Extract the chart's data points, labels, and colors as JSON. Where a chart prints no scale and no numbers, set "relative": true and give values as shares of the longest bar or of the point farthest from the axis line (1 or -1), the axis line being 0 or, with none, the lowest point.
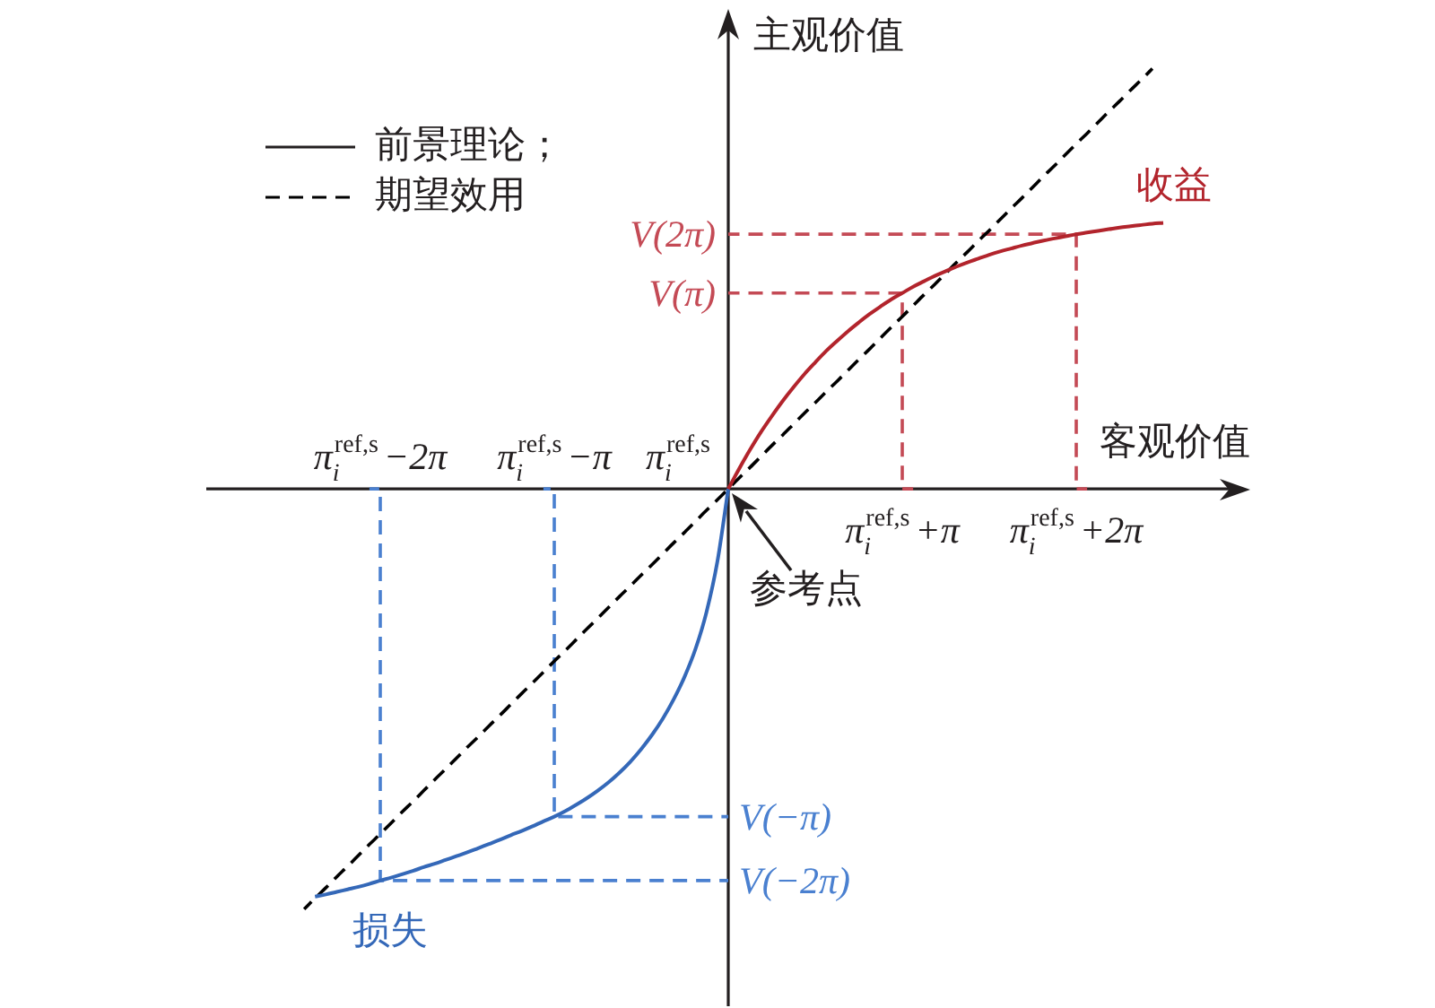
{
  "chart_data": {
    "type": "line",
    "relative": true,
    "xlabel": "客观价值",
    "ylabel": "主观价值",
    "categories": [
      null,
      null,
      null,
      null,
      null,
      null,
      null,
      null,
      null,
      null,
      null,
      null,
      null,
      null,
      null,
      null,
      "π$_{i}$$^{ref,s}$−2π",
      null,
      null,
      null,
      null,
      null,
      null,
      null,
      null,
      null,
      null,
      null,
      null,
      null,
      null,
      null,
      "π$_{i}$$^{ref,s}$−π",
      null,
      null,
      null,
      null,
      null,
      null,
      null,
      null,
      null,
      null,
      null,
      null,
      null,
      null,
      null,
      null,
      null,
      null,
      null,
      null,
      null,
      null,
      null,
      null,
      null,
      null,
      null,
      null,
      null,
      null,
      null,
      "π$_{i}$$^{ref,s}$+π",
      null,
      null,
      null,
      null,
      null,
      null,
      null,
      null,
      null,
      null,
      null,
      null,
      null,
      null,
      null,
      "π$_{i}$$^{ref,s}$+2π",
      null,
      null,
      null,
      null,
      null,
      null,
      null,
      null,
      null,
      null,
      null,
      null,
      null,
      null,
      null,
      null
    ],
    "tick_labels": "x",
    "legend": "top left",
    "series": [
      {
        "name": "收益",
        "color": "#b2242c",
        "values": [
          null,
          null,
          null,
          null,
          null,
          null,
          null,
          null,
          null,
          null,
          null,
          null,
          null,
          null,
          null,
          null,
          null,
          null,
          null,
          null,
          null,
          null,
          null,
          null,
          null,
          null,
          null,
          null,
          null,
          null,
          null,
          null,
          null,
          null,
          null,
          null,
          null,
          null,
          null,
          null,
          null,
          null,
          null,
          null,
          null,
          null,
          null,
          null,
          0,
          0.048,
          0.093,
          0.135,
          0.173,
          0.209,
          0.242,
          0.273,
          0.301,
          0.328,
          0.352,
          0.375,
          0.396,
          0.416,
          0.434,
          0.451,
          0.466,
          0.481,
          0.494,
          0.507,
          0.518,
          0.529,
          0.539,
          0.548,
          0.557,
          0.565,
          0.572,
          0.579,
          0.585,
          0.591,
          0.596,
          0.601,
          0.606,
          0.61,
          0.614,
          0.618,
          0.622,
          0.625,
          0.628,
          0.631,
          0.633,
          null,
          null,
          null,
          null,
          null,
          null,
          null,
          null
        ]
      },
      {
        "name": "损失",
        "color": "#3468b8",
        "values": [
          null,
          null,
          null,
          null,
          null,
          null,
          null,
          null,
          null,
          null,
          -0.97,
          -0.965,
          -0.959,
          -0.953,
          -0.947,
          -0.94,
          -0.932,
          -0.925,
          -0.917,
          -0.909,
          -0.9,
          -0.892,
          -0.883,
          -0.874,
          -0.865,
          -0.855,
          -0.845,
          -0.835,
          -0.824,
          -0.814,
          -0.803,
          -0.791,
          -0.78,
          -0.767,
          -0.752,
          -0.736,
          -0.718,
          -0.698,
          -0.675,
          -0.649,
          -0.619,
          -0.585,
          -0.546,
          -0.5,
          -0.446,
          -0.38,
          -0.293,
          -0.173,
          0,
          null,
          null,
          null,
          null,
          null,
          null,
          null,
          null,
          null,
          null,
          null,
          null,
          null,
          null,
          null,
          null,
          null,
          null,
          null,
          null,
          null,
          null,
          null,
          null,
          null,
          null,
          null,
          null,
          null,
          null,
          null,
          null,
          null,
          null,
          null,
          null,
          null,
          null,
          null,
          null,
          null,
          null,
          null,
          null,
          null,
          null,
          null,
          null
        ]
      },
      {
        "name": "期望效用",
        "color": "#000000",
        "line_style": "dashed",
        "values": [
          null,
          null,
          null,
          null,
          null,
          null,
          null,
          null,
          null,
          -1,
          -0.974,
          -0.949,
          -0.923,
          -0.898,
          -0.872,
          -0.846,
          -0.821,
          -0.795,
          -0.769,
          -0.744,
          -0.718,
          -0.692,
          -0.667,
          -0.641,
          -0.615,
          -0.59,
          -0.564,
          -0.539,
          -0.513,
          -0.487,
          -0.462,
          -0.436,
          -0.41,
          -0.385,
          -0.359,
          -0.333,
          -0.308,
          -0.282,
          -0.256,
          -0.231,
          -0.205,
          -0.18,
          -0.154,
          -0.128,
          -0.103,
          -0.077,
          -0.051,
          -0.026,
          0,
          0.026,
          0.051,
          0.077,
          0.103,
          0.128,
          0.154,
          0.18,
          0.205,
          0.231,
          0.256,
          0.282,
          0.308,
          0.333,
          0.359,
          0.385,
          0.41,
          0.436,
          0.462,
          0.487,
          0.513,
          0.539,
          0.564,
          0.59,
          0.615,
          0.641,
          0.667,
          0.692,
          0.718,
          0.744,
          0.769,
          0.795,
          0.821,
          0.846,
          0.872,
          0.898,
          0.923,
          0.949,
          0.974,
          1,
          null,
          null,
          null,
          null,
          null,
          null,
          null,
          null,
          null
        ]
      },
      {
        "name": "V(π)",
        "type": "step",
        "color": "#c44a55",
        "line_style": "dashed",
        "values": [
          null,
          null,
          null,
          null,
          null,
          null,
          null,
          null,
          null,
          null,
          null,
          null,
          null,
          null,
          null,
          null,
          null,
          null,
          null,
          null,
          null,
          null,
          null,
          null,
          null,
          null,
          null,
          null,
          null,
          null,
          null,
          null,
          null,
          null,
          null,
          null,
          null,
          null,
          null,
          null,
          null,
          null,
          null,
          null,
          null,
          null,
          null,
          null,
          0.466,
          0.466,
          0.466,
          0.466,
          0.466,
          0.466,
          0.466,
          0.466,
          0.466,
          0.466,
          0.466,
          0.466,
          0.466,
          0.466,
          0.466,
          0.466,
          0.466,
          0,
          null,
          null,
          null,
          null,
          null,
          null,
          null,
          null,
          null,
          null,
          null,
          null,
          null,
          null,
          null,
          null,
          null,
          null,
          null,
          null,
          null,
          null,
          null,
          null,
          null,
          null,
          null,
          null,
          null,
          null,
          null
        ]
      },
      {
        "name": "V(2π)",
        "type": "step",
        "color": "#c44a55",
        "line_style": "dashed",
        "values": [
          null,
          null,
          null,
          null,
          null,
          null,
          null,
          null,
          null,
          null,
          null,
          null,
          null,
          null,
          null,
          null,
          null,
          null,
          null,
          null,
          null,
          null,
          null,
          null,
          null,
          null,
          null,
          null,
          null,
          null,
          null,
          null,
          null,
          null,
          null,
          null,
          null,
          null,
          null,
          null,
          null,
          null,
          null,
          null,
          null,
          null,
          null,
          null,
          0.606,
          0.606,
          0.606,
          0.606,
          0.606,
          0.606,
          0.606,
          0.606,
          0.606,
          0.606,
          0.606,
          0.606,
          0.606,
          0.606,
          0.606,
          0.606,
          0.606,
          0.606,
          0.606,
          0.606,
          0.606,
          0.606,
          0.606,
          0.606,
          0.606,
          0.606,
          0.606,
          0.606,
          0.606,
          0.606,
          0.606,
          0.606,
          0.606,
          0,
          null,
          null,
          null,
          null,
          null,
          null,
          null,
          null,
          null,
          null,
          null,
          null,
          null,
          null,
          null
        ]
      },
      {
        "name": "V(−π)",
        "type": "step",
        "color": "#4a80d0",
        "line_style": "dashed",
        "values": [
          null,
          null,
          null,
          null,
          null,
          null,
          null,
          null,
          null,
          null,
          null,
          null,
          null,
          null,
          null,
          null,
          null,
          null,
          null,
          null,
          null,
          null,
          null,
          null,
          null,
          null,
          null,
          null,
          null,
          null,
          null,
          0,
          -0.78,
          -0.78,
          -0.78,
          -0.78,
          -0.78,
          -0.78,
          -0.78,
          -0.78,
          -0.78,
          -0.78,
          -0.78,
          -0.78,
          -0.78,
          -0.78,
          -0.78,
          -0.78,
          -0.78,
          null,
          null,
          null,
          null,
          null,
          null,
          null,
          null,
          null,
          null,
          null,
          null,
          null,
          null,
          null,
          null,
          null,
          null,
          null,
          null,
          null,
          null,
          null,
          null,
          null,
          null,
          null,
          null,
          null,
          null,
          null,
          null,
          null,
          null,
          null,
          null,
          null,
          null,
          null,
          null,
          null,
          null,
          null,
          null,
          null,
          null,
          null,
          null
        ]
      },
      {
        "name": "V(−2π)",
        "type": "step",
        "color": "#4a80d0",
        "line_style": "dashed",
        "values": [
          null,
          null,
          null,
          null,
          null,
          null,
          null,
          null,
          null,
          null,
          null,
          null,
          null,
          null,
          null,
          0,
          -0.932,
          -0.932,
          -0.932,
          -0.932,
          -0.932,
          -0.932,
          -0.932,
          -0.932,
          -0.932,
          -0.932,
          -0.932,
          -0.932,
          -0.932,
          -0.932,
          -0.932,
          -0.932,
          -0.932,
          -0.932,
          -0.932,
          -0.932,
          -0.932,
          -0.932,
          -0.932,
          -0.932,
          -0.932,
          -0.932,
          -0.932,
          -0.932,
          -0.932,
          -0.932,
          -0.932,
          -0.932,
          -0.932,
          null,
          null,
          null,
          null,
          null,
          null,
          null,
          null,
          null,
          null,
          null,
          null,
          null,
          null,
          null,
          null,
          null,
          null,
          null,
          null,
          null,
          null,
          null,
          null,
          null,
          null,
          null,
          null,
          null,
          null,
          null,
          null,
          null,
          null,
          null,
          null,
          null,
          null,
          null,
          null,
          null,
          null,
          null,
          null,
          null,
          null,
          null,
          null
        ]
      }
    ],
    "annotations": [
      "前景理论；",
      "π$_{i}$$^{ref,s}$",
      "参考点"
    ]
  }
}
